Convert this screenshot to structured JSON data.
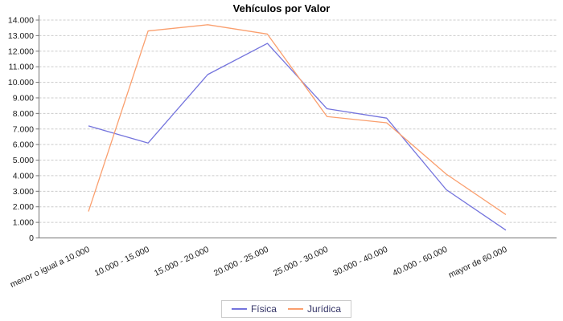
{
  "chart_data": {
    "type": "line",
    "title": "Vehículos por Valor",
    "categories": [
      "menor o igual a 10.000",
      "10.000 - 15.000",
      "15.000 - 20.000",
      "20.000 - 25.000",
      "25.000 - 30.000",
      "30.000 - 40.000",
      "40.000 - 60.000",
      "mayor de 60.000"
    ],
    "series": [
      {
        "name": "Física",
        "color": "#7474dd",
        "values": [
          7200,
          6100,
          10500,
          12500,
          8300,
          7700,
          3100,
          500
        ]
      },
      {
        "name": "Jurídica",
        "color": "#fa9f6e",
        "values": [
          1700,
          13300,
          13700,
          13100,
          7800,
          7400,
          4100,
          1500
        ]
      }
    ],
    "ylim": [
      0,
      14000
    ],
    "ytick_step": 1000,
    "ytick_labels": [
      "0",
      "1.000",
      "2.000",
      "3.000",
      "4.000",
      "5.000",
      "6.000",
      "7.000",
      "8.000",
      "9.000",
      "10.000",
      "11.000",
      "12.000",
      "13.000",
      "14.000"
    ],
    "xlabel": "",
    "ylabel": "",
    "grid": "horizontal-dashed",
    "legend_position": "bottom-center",
    "colors": {
      "grid": "#cccccc",
      "axis": "#737373",
      "tick_text": "#1a1a1a",
      "legend_text": "#333366",
      "legend_border": "#cccccc",
      "title_text": "#000000",
      "background": "#ffffff"
    }
  }
}
